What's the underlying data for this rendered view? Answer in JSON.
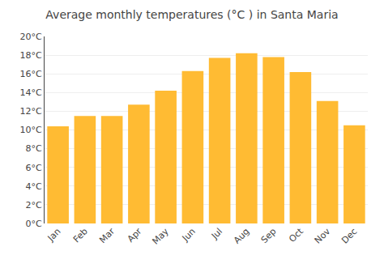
{
  "chart_data": {
    "type": "bar",
    "title": "Average monthly temperatures (°C ) in Santa Maria",
    "categories": [
      "Jan",
      "Feb",
      "Mar",
      "Apr",
      "May",
      "Jun",
      "Jul",
      "Aug",
      "Sep",
      "Oct",
      "Nov",
      "Dec"
    ],
    "values": [
      10.4,
      11.5,
      11.5,
      12.7,
      14.2,
      16.3,
      17.7,
      18.2,
      17.8,
      16.2,
      13.1,
      10.5
    ],
    "color": "#FFBB33",
    "ylim": [
      0,
      20
    ],
    "yticks": [
      {
        "value": 0,
        "label": "0°C"
      },
      {
        "value": 2,
        "label": "2°C"
      },
      {
        "value": 4,
        "label": "4°C"
      },
      {
        "value": 6,
        "label": "6°C"
      },
      {
        "value": 8,
        "label": "8°C"
      },
      {
        "value": 10,
        "label": "10°C"
      },
      {
        "value": 12,
        "label": "12°C"
      },
      {
        "value": 14,
        "label": "14°C"
      },
      {
        "value": 16,
        "label": "16°C"
      },
      {
        "value": 18,
        "label": "18°C"
      },
      {
        "value": 20,
        "label": "20°C"
      }
    ],
    "grid": true
  }
}
